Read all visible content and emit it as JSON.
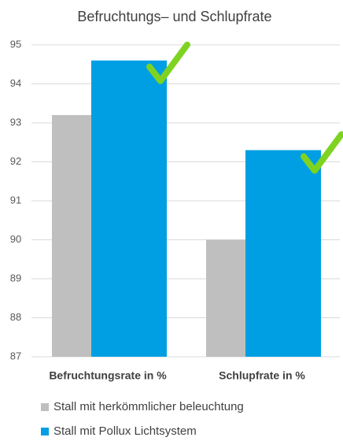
{
  "chart_data": {
    "type": "bar",
    "title": "Befruchtungs– und Schlupfrate",
    "categories": [
      "Befruchtungsrate in %",
      "Schlupfrate in %"
    ],
    "series": [
      {
        "name": "Stall mit herkömmlicher beleuchtung",
        "color": "#bfbfbf",
        "values": [
          93.2,
          90.0
        ]
      },
      {
        "name": "Stall mit Pollux Lichtsystem",
        "color": "#009fe3",
        "values": [
          94.6,
          92.3
        ]
      }
    ],
    "ylim": [
      87,
      95
    ],
    "yticks": [
      87,
      88,
      89,
      90,
      91,
      92,
      93,
      94,
      95
    ],
    "grid": true,
    "legend": "bottom"
  }
}
